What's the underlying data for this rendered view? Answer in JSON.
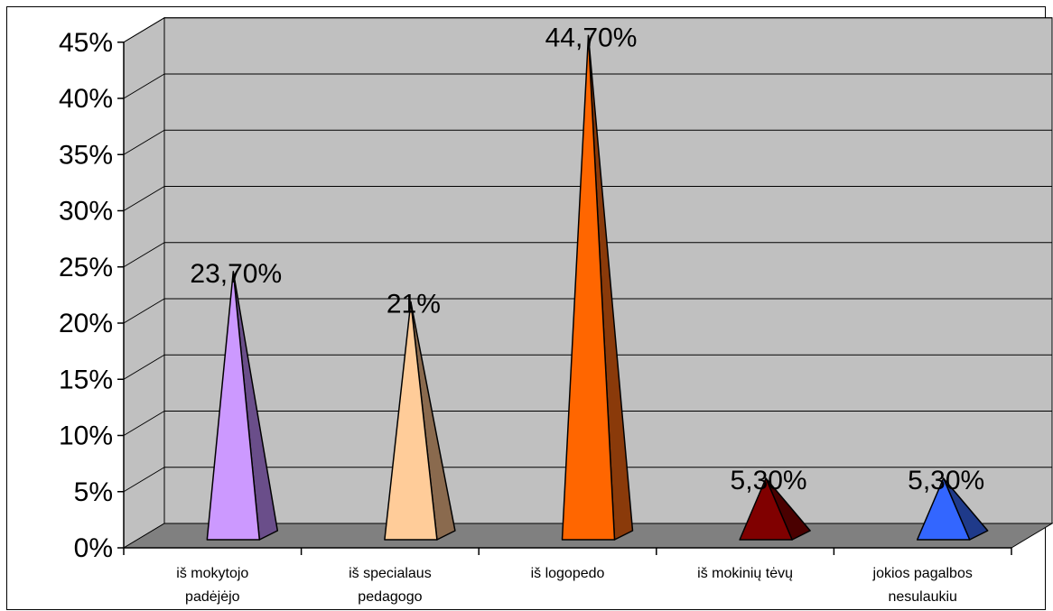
{
  "chart_data": {
    "type": "bar",
    "bar_shape": "pyramid",
    "three_d": true,
    "categories": [
      [
        "iš mokytojo",
        "padėjėjo"
      ],
      [
        "iš specialaus",
        "pedagogo"
      ],
      [
        "iš logopedo"
      ],
      [
        "iš mokinių tėvų"
      ],
      [
        "jokios pagalbos",
        "nesulaukiu"
      ]
    ],
    "values": [
      23.7,
      21,
      44.7,
      5.3,
      5.3
    ],
    "data_labels": [
      "23,70%",
      "21%",
      "44,70%",
      "5,30%",
      "5,30%"
    ],
    "colors": [
      "#CC99FF",
      "#FFCC99",
      "#FF6600",
      "#800000",
      "#3366FF"
    ],
    "side_colors": [
      "#6A4E8A",
      "#8A6A4E",
      "#8A3A0A",
      "#4A0000",
      "#1F3A8A"
    ],
    "y_ticks": [
      "0%",
      "5%",
      "10%",
      "15%",
      "20%",
      "25%",
      "30%",
      "35%",
      "40%",
      "45%"
    ],
    "ylim": [
      0,
      45
    ],
    "grid": true,
    "wall_color": "#C0C0C0",
    "floor_color": "#808080",
    "title": "",
    "xlabel": "",
    "ylabel": ""
  }
}
